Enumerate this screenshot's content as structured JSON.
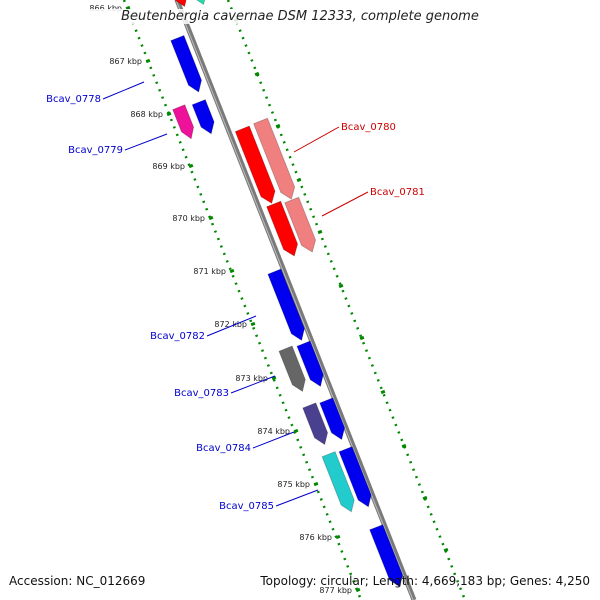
{
  "title": "Beutenbergia cavernae DSM 12333, complete genome",
  "footer": {
    "accession": "Accession: NC_012669",
    "summary": "Topology: circular; Length: 4,669,183 bp; Genes: 4,250"
  },
  "ticks": [
    {
      "label": "866 kbp"
    },
    {
      "label": "867 kbp"
    },
    {
      "label": "868 kbp"
    },
    {
      "label": "869 kbp"
    },
    {
      "label": "870 kbp"
    },
    {
      "label": "871 kbp"
    },
    {
      "label": "872 kbp"
    },
    {
      "label": "873 kbp"
    },
    {
      "label": "874 kbp"
    },
    {
      "label": "875 kbp"
    },
    {
      "label": "876 kbp"
    },
    {
      "label": "877 kbp"
    }
  ],
  "genes": [
    {
      "label": "Bcav_0778",
      "color": "#0000cc"
    },
    {
      "label": "Bcav_0779",
      "color": "#0000cc"
    },
    {
      "label": "Bcav_0780",
      "color": "#cc0000"
    },
    {
      "label": "Bcav_0781",
      "color": "#cc0000"
    },
    {
      "label": "Bcav_0782",
      "color": "#0000cc"
    },
    {
      "label": "Bcav_0783",
      "color": "#0000cc"
    },
    {
      "label": "Bcav_0784",
      "color": "#0000cc"
    },
    {
      "label": "Bcav_0785",
      "color": "#0000cc"
    }
  ],
  "colors": {
    "forward_gene": "#0000ee",
    "reverse_gene": "#ff0000",
    "reverse_gene_light": "#f08080",
    "magenta_gene": "#ee1199",
    "gray_gene": "#666666",
    "slate_gene": "#4a4090",
    "cyan_gene": "#22cccc",
    "teal_gene": "#22ddaa",
    "backbone": "#888888",
    "dotted_track": "#008800"
  }
}
